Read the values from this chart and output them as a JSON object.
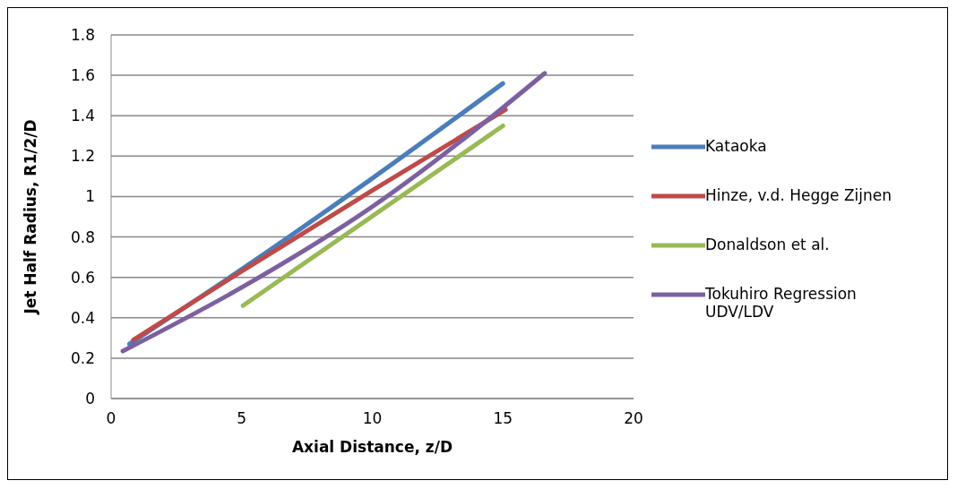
{
  "chart_data": {
    "type": "line",
    "xlabel": "Axial Distance, z/D",
    "ylabel": "Jet Half Radius, R1/2/D",
    "xlim": [
      0,
      20
    ],
    "xticks": [
      0,
      5,
      10,
      15,
      20
    ],
    "ylim": [
      0,
      1.8
    ],
    "yticks": [
      0,
      0.2,
      0.4,
      0.6,
      0.8,
      1,
      1.2,
      1.4,
      1.6,
      1.8
    ],
    "grid": "y",
    "legend": "right",
    "marker": "none",
    "line_style": "solid",
    "series": [
      {
        "name": "Kataoka",
        "color": "#4a7ebb",
        "x": [
          0.7,
          5,
          10,
          15
        ],
        "values": [
          0.27,
          0.64,
          1.09,
          1.56
        ]
      },
      {
        "name": "Hinze, v.d. Hegge Zijnen",
        "color": "#be4b48",
        "x": [
          0.85,
          5,
          10,
          15.1
        ],
        "values": [
          0.29,
          0.63,
          1.03,
          1.43
        ]
      },
      {
        "name": "Donaldson et al.",
        "color": "#98b954",
        "x": [
          5.05,
          15
        ],
        "values": [
          0.46,
          1.35
        ]
      },
      {
        "name": "Tokuhiro Regression UDV/LDV",
        "color": "#7d60a0",
        "x": [
          0.45,
          5,
          10,
          15,
          16.6
        ],
        "values": [
          0.235,
          0.55,
          0.95,
          1.44,
          1.61
        ]
      }
    ]
  }
}
